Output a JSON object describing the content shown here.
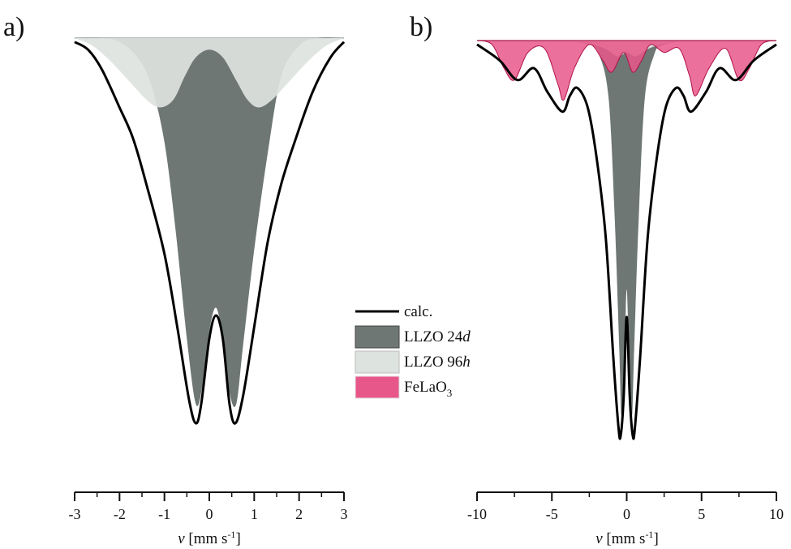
{
  "chart_data": [
    {
      "panel": "a)",
      "type": "area",
      "xlabel": "v [mm s-1]",
      "xlabel_parts": {
        "symbol": "v",
        "open": " [mm s",
        "exp": "-1",
        "close": "]"
      },
      "xlim": [
        -3,
        3
      ],
      "xticks": [
        -3,
        -2,
        -1,
        0,
        1,
        2,
        3
      ],
      "series": [
        {
          "name": "calc.",
          "kind": "line",
          "color": "#000000",
          "x": [
            -3,
            -2.7,
            -2.4,
            -2.0,
            -1.7,
            -1.4,
            -1.0,
            -0.7,
            -0.45,
            -0.3,
            -0.18,
            0,
            0.15,
            0.3,
            0.45,
            0.58,
            0.75,
            1.0,
            1.3,
            1.6,
            1.9,
            2.3,
            2.7,
            3
          ],
          "y": [
            0.99,
            0.97,
            0.92,
            0.82,
            0.74,
            0.62,
            0.44,
            0.24,
            0.06,
            0.0,
            0.05,
            0.22,
            0.28,
            0.22,
            0.05,
            0.0,
            0.07,
            0.25,
            0.47,
            0.62,
            0.73,
            0.86,
            0.95,
            0.99
          ]
        },
        {
          "name": "LLZO 24d",
          "kind": "fill",
          "color": "#6e7773",
          "x": [
            -3,
            -2.4,
            -2.0,
            -1.6,
            -1.3,
            -1.0,
            -0.75,
            -0.5,
            -0.3,
            -0.15,
            0,
            0.15,
            0.3,
            0.45,
            0.6,
            0.75,
            1.0,
            1.3,
            1.6,
            2.0,
            2.4,
            3
          ],
          "y": [
            1.0,
            1.0,
            0.99,
            0.95,
            0.88,
            0.73,
            0.5,
            0.22,
            0.05,
            0.1,
            0.24,
            0.3,
            0.22,
            0.08,
            0.05,
            0.2,
            0.45,
            0.7,
            0.9,
            0.98,
            1.0,
            1.0
          ]
        },
        {
          "name": "LLZO 96h",
          "kind": "fill",
          "color": "#dde3df",
          "x": [
            -3,
            -2.6,
            -2.2,
            -1.8,
            -1.4,
            -1.1,
            -0.8,
            -0.55,
            -0.3,
            0,
            0.3,
            0.6,
            0.85,
            1.1,
            1.4,
            1.8,
            2.2,
            2.6,
            3
          ],
          "y": [
            1.0,
            0.98,
            0.94,
            0.89,
            0.84,
            0.82,
            0.84,
            0.9,
            0.95,
            0.97,
            0.95,
            0.89,
            0.84,
            0.82,
            0.84,
            0.89,
            0.94,
            0.98,
            1.0
          ]
        }
      ]
    },
    {
      "panel": "b)",
      "type": "area",
      "xlabel": "v [mm s-1]",
      "xlabel_parts": {
        "symbol": "v",
        "open": " [mm s",
        "exp": "-1",
        "close": "]"
      },
      "xlim": [
        -10,
        10
      ],
      "xticks": [
        -10,
        -5,
        0,
        5,
        10
      ],
      "series": [
        {
          "name": "calc.",
          "kind": "line",
          "color": "#000000",
          "x": [
            -10,
            -8.5,
            -7.3,
            -6.2,
            -5.3,
            -4.3,
            -3.8,
            -3.3,
            -2.6,
            -2.0,
            -1.4,
            -0.9,
            -0.55,
            -0.4,
            -0.2,
            0,
            0.2,
            0.4,
            0.55,
            0.9,
            1.4,
            2.0,
            2.6,
            3.3,
            3.8,
            4.3,
            5.3,
            6.2,
            7.3,
            8.5,
            10
          ],
          "y": [
            0.99,
            0.95,
            0.9,
            0.93,
            0.87,
            0.82,
            0.86,
            0.88,
            0.83,
            0.7,
            0.5,
            0.2,
            0.02,
            0.0,
            0.1,
            0.3,
            0.1,
            0.0,
            0.02,
            0.2,
            0.5,
            0.7,
            0.83,
            0.88,
            0.86,
            0.82,
            0.87,
            0.93,
            0.9,
            0.95,
            0.99
          ]
        },
        {
          "name": "LLZO 24d",
          "kind": "fill",
          "color": "#6e7773",
          "x": [
            -10,
            -5,
            -2.5,
            -1.8,
            -1.2,
            -0.8,
            -0.5,
            -0.35,
            -0.15,
            0,
            0.15,
            0.35,
            0.5,
            0.8,
            1.2,
            1.8,
            2.5,
            5,
            10
          ],
          "y": [
            1.0,
            1.0,
            0.99,
            0.96,
            0.85,
            0.55,
            0.22,
            0.05,
            0.2,
            0.37,
            0.2,
            0.05,
            0.22,
            0.55,
            0.85,
            0.96,
            0.99,
            1.0,
            1.0
          ]
        },
        {
          "name": "LLZO 96h",
          "kind": "fill",
          "color": "#dde3df",
          "x": [
            -10,
            -6,
            -3,
            -1.5,
            -0.6,
            0,
            0.6,
            1.5,
            3,
            6,
            10
          ],
          "y": [
            1.0,
            1.0,
            0.995,
            0.98,
            0.96,
            0.97,
            0.96,
            0.98,
            0.995,
            1.0,
            1.0
          ]
        },
        {
          "name": "FeLaO3",
          "kind": "fill",
          "color": "#e8578a",
          "x": [
            -10,
            -9.0,
            -8.2,
            -7.5,
            -6.6,
            -5.5,
            -4.6,
            -4.2,
            -3.5,
            -2.5,
            -1.6,
            -1.0,
            -0.2,
            0.4,
            1.0,
            1.6,
            2.5,
            3.5,
            4.2,
            4.6,
            5.5,
            6.6,
            7.5,
            8.2,
            9.0,
            10
          ],
          "y": [
            1.0,
            0.99,
            0.93,
            0.9,
            0.97,
            0.98,
            0.89,
            0.85,
            0.93,
            0.99,
            0.95,
            0.92,
            0.97,
            0.92,
            0.95,
            0.99,
            0.97,
            0.98,
            0.91,
            0.86,
            0.93,
            0.98,
            0.9,
            0.93,
            0.99,
            1.0
          ]
        }
      ]
    }
  ],
  "legend": {
    "placement": "center",
    "items": [
      {
        "label": "calc.",
        "kind": "line",
        "color": "#000000"
      },
      {
        "label_main": "LLZO 24",
        "label_italic": "d",
        "kind": "fill",
        "color": "#6e7773"
      },
      {
        "label_main": "LLZO 96",
        "label_italic": "h",
        "kind": "fill",
        "color": "#dde3df"
      },
      {
        "label_main": "FeLaO",
        "label_sub": "3",
        "kind": "fill",
        "color": "#e8578a"
      }
    ]
  }
}
